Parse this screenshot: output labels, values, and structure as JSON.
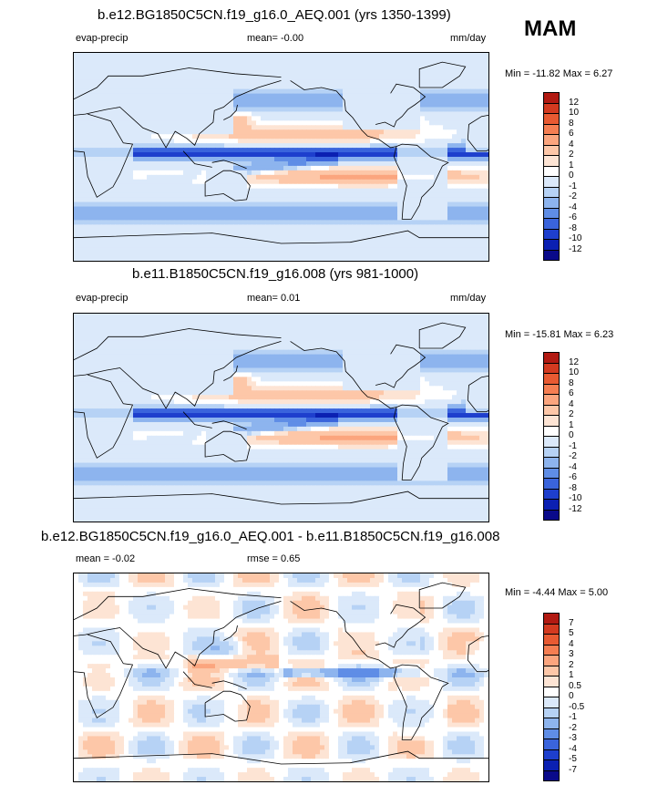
{
  "season": "MAM",
  "panels": [
    {
      "title": "b.e12.BG1850C5CN.f19_g16.0_AEQ.001 (yrs 1350-1399)",
      "left_label": "evap-precip",
      "center_label": "mean=  -0.00",
      "right_label": "mm/day",
      "minmax": "Min = -11.82 Max =   6.27",
      "levels": [
        "12",
        "10",
        "8",
        "6",
        "4",
        "2",
        "1",
        "0",
        "-1",
        "-2",
        "-4",
        "-6",
        "-8",
        "-10",
        "-12"
      ],
      "colors": [
        "#b21a12",
        "#d33a20",
        "#e85a32",
        "#f57e52",
        "#fba57e",
        "#fdc7a8",
        "#fde4d4",
        "#ffffff",
        "#dbe9fa",
        "#b6d2f5",
        "#8db4ee",
        "#5f8de6",
        "#3a64dc",
        "#1e3fcd",
        "#0b20b2",
        "#0a0a8a"
      ],
      "kind": "mean"
    },
    {
      "title": "b.e11.B1850C5CN.f19_g16.008 (yrs 981-1000)",
      "left_label": "evap-precip",
      "center_label": "mean=   0.01",
      "right_label": "mm/day",
      "minmax": "Min = -15.81 Max =   6.23",
      "levels": [
        "12",
        "10",
        "8",
        "6",
        "4",
        "2",
        "1",
        "0",
        "-1",
        "-2",
        "-4",
        "-6",
        "-8",
        "-10",
        "-12"
      ],
      "colors": [
        "#b21a12",
        "#d33a20",
        "#e85a32",
        "#f57e52",
        "#fba57e",
        "#fdc7a8",
        "#fde4d4",
        "#ffffff",
        "#dbe9fa",
        "#b6d2f5",
        "#8db4ee",
        "#5f8de6",
        "#3a64dc",
        "#1e3fcd",
        "#0b20b2",
        "#0a0a8a"
      ],
      "kind": "mean"
    },
    {
      "title": "b.e12.BG1850C5CN.f19_g16.0_AEQ.001 - b.e11.B1850C5CN.f19_g16.008",
      "left_label": "mean =  -0.02",
      "center_label": "rmse =   0.65",
      "right_label": "",
      "minmax": "Min = -4.44 Max =   5.00",
      "levels": [
        "7",
        "5",
        "4",
        "3",
        "2",
        "1",
        "0.5",
        "0",
        "-0.5",
        "-1",
        "-2",
        "-3",
        "-4",
        "-5",
        "-7"
      ],
      "colors": [
        "#b21a12",
        "#d33a20",
        "#e85a32",
        "#f57e52",
        "#fba57e",
        "#fdc7a8",
        "#fde4d4",
        "#ffffff",
        "#dbe9fa",
        "#b6d2f5",
        "#8db4ee",
        "#5f8de6",
        "#3a64dc",
        "#1e3fcd",
        "#0b20b2",
        "#0a0a8a"
      ],
      "kind": "diff"
    }
  ],
  "chart_data": [
    {
      "type": "heatmap",
      "title": "b.e12.BG1850C5CN.f19_g16.0_AEQ.001 (yrs 1350-1399)",
      "variable": "evap-precip",
      "units": "mm/day",
      "mean": -0.0,
      "min": -11.82,
      "max": 6.27,
      "contour_levels": [
        -12,
        -10,
        -8,
        -6,
        -4,
        -2,
        -1,
        0,
        1,
        2,
        4,
        6,
        8,
        10,
        12
      ]
    },
    {
      "type": "heatmap",
      "title": "b.e11.B1850C5CN.f19_g16.008 (yrs 981-1000)",
      "variable": "evap-precip",
      "units": "mm/day",
      "mean": 0.01,
      "min": -15.81,
      "max": 6.23,
      "contour_levels": [
        -12,
        -10,
        -8,
        -6,
        -4,
        -2,
        -1,
        0,
        1,
        2,
        4,
        6,
        8,
        10,
        12
      ]
    },
    {
      "type": "heatmap",
      "title": "b.e12.BG1850C5CN.f19_g16.0_AEQ.001 - b.e11.B1850C5CN.f19_g16.008",
      "mean": -0.02,
      "rmse": 0.65,
      "min": -4.44,
      "max": 5.0,
      "contour_levels": [
        -7,
        -5,
        -4,
        -3,
        -2,
        -1,
        -0.5,
        0,
        0.5,
        1,
        2,
        3,
        4,
        5,
        7
      ]
    }
  ]
}
